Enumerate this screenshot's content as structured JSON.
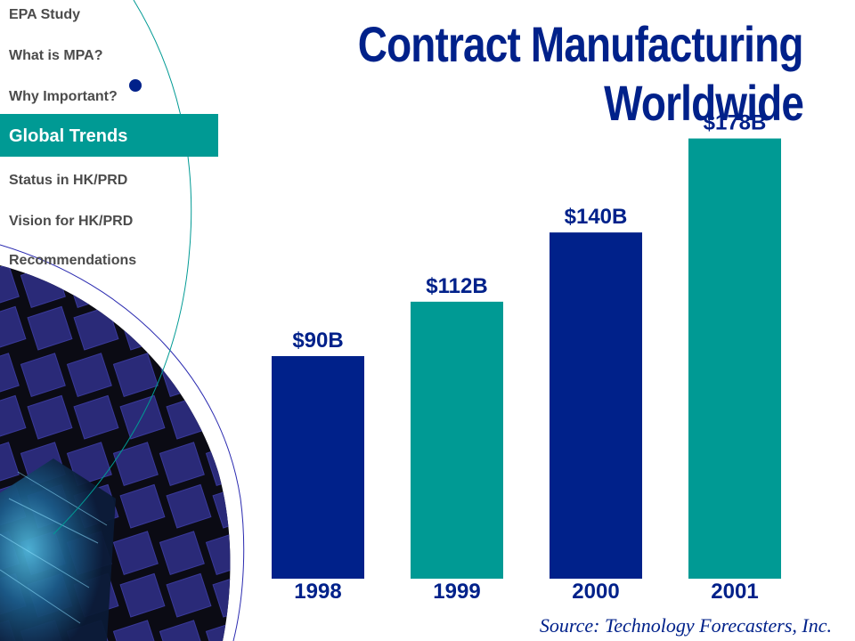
{
  "nav": {
    "items": [
      {
        "label": "EPA Study",
        "active": false
      },
      {
        "label": "What is MPA?",
        "active": false
      },
      {
        "label": "Why Important?",
        "active": false
      },
      {
        "label": "Global Trends",
        "active": true
      },
      {
        "label": "Status in HK/PRD",
        "active": false
      },
      {
        "label": "Vision for HK/PRD",
        "active": false
      },
      {
        "label": "Recommendations",
        "active": false
      }
    ]
  },
  "title": {
    "line1": "Contract Manufacturing",
    "line2": "Worldwide"
  },
  "source": "Source: Technology Forecasters, Inc.",
  "colors": {
    "navy": "#00218a",
    "teal": "#009a94",
    "nav_text": "#4b4b4b"
  },
  "chart_data": {
    "type": "bar",
    "categories": [
      "1998",
      "1999",
      "2000",
      "2001"
    ],
    "values": [
      90,
      112,
      140,
      178
    ],
    "data_labels": [
      "$90B",
      "$112B",
      "$140B",
      "$178B"
    ],
    "bar_colors": [
      "#00218a",
      "#009a94",
      "#00218a",
      "#009a94"
    ],
    "title": "",
    "xlabel": "",
    "ylabel": "",
    "ylim": [
      0,
      180
    ],
    "grid": false,
    "legend": "none"
  }
}
